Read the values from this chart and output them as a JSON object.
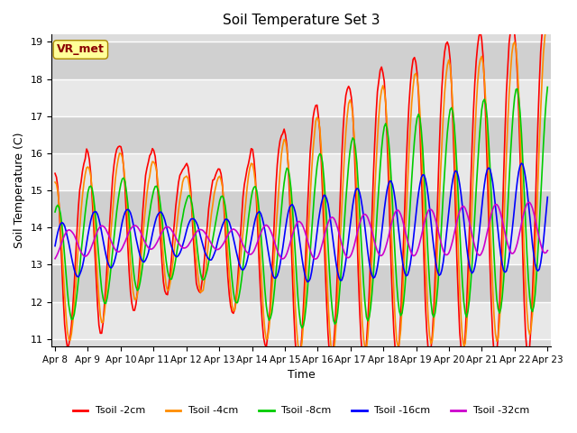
{
  "title": "Soil Temperature Set 3",
  "xlabel": "Time",
  "ylabel": "Soil Temperature (C)",
  "plot_bg_color": "#dcdcdc",
  "grid_color": "#ffffff",
  "ylim": [
    10.8,
    19.2
  ],
  "yticks": [
    11.0,
    12.0,
    13.0,
    14.0,
    15.0,
    16.0,
    17.0,
    18.0,
    19.0
  ],
  "xtick_labels": [
    "Apr 8",
    "Apr 9",
    "Apr 10",
    "Apr 11",
    "Apr 12",
    "Apr 13",
    "Apr 14",
    "Apr 15",
    "Apr 16",
    "Apr 17",
    "Apr 18",
    "Apr 19",
    "Apr 20",
    "Apr 21",
    "Apr 22",
    "Apr 23"
  ],
  "series_colors": [
    "#ff0000",
    "#ff8c00",
    "#00cc00",
    "#0000ff",
    "#cc00cc"
  ],
  "series_labels": [
    "Tsoil -2cm",
    "Tsoil -4cm",
    "Tsoil -8cm",
    "Tsoil -16cm",
    "Tsoil -32cm"
  ],
  "legend_label": "VR_met",
  "linewidth": 1.2
}
